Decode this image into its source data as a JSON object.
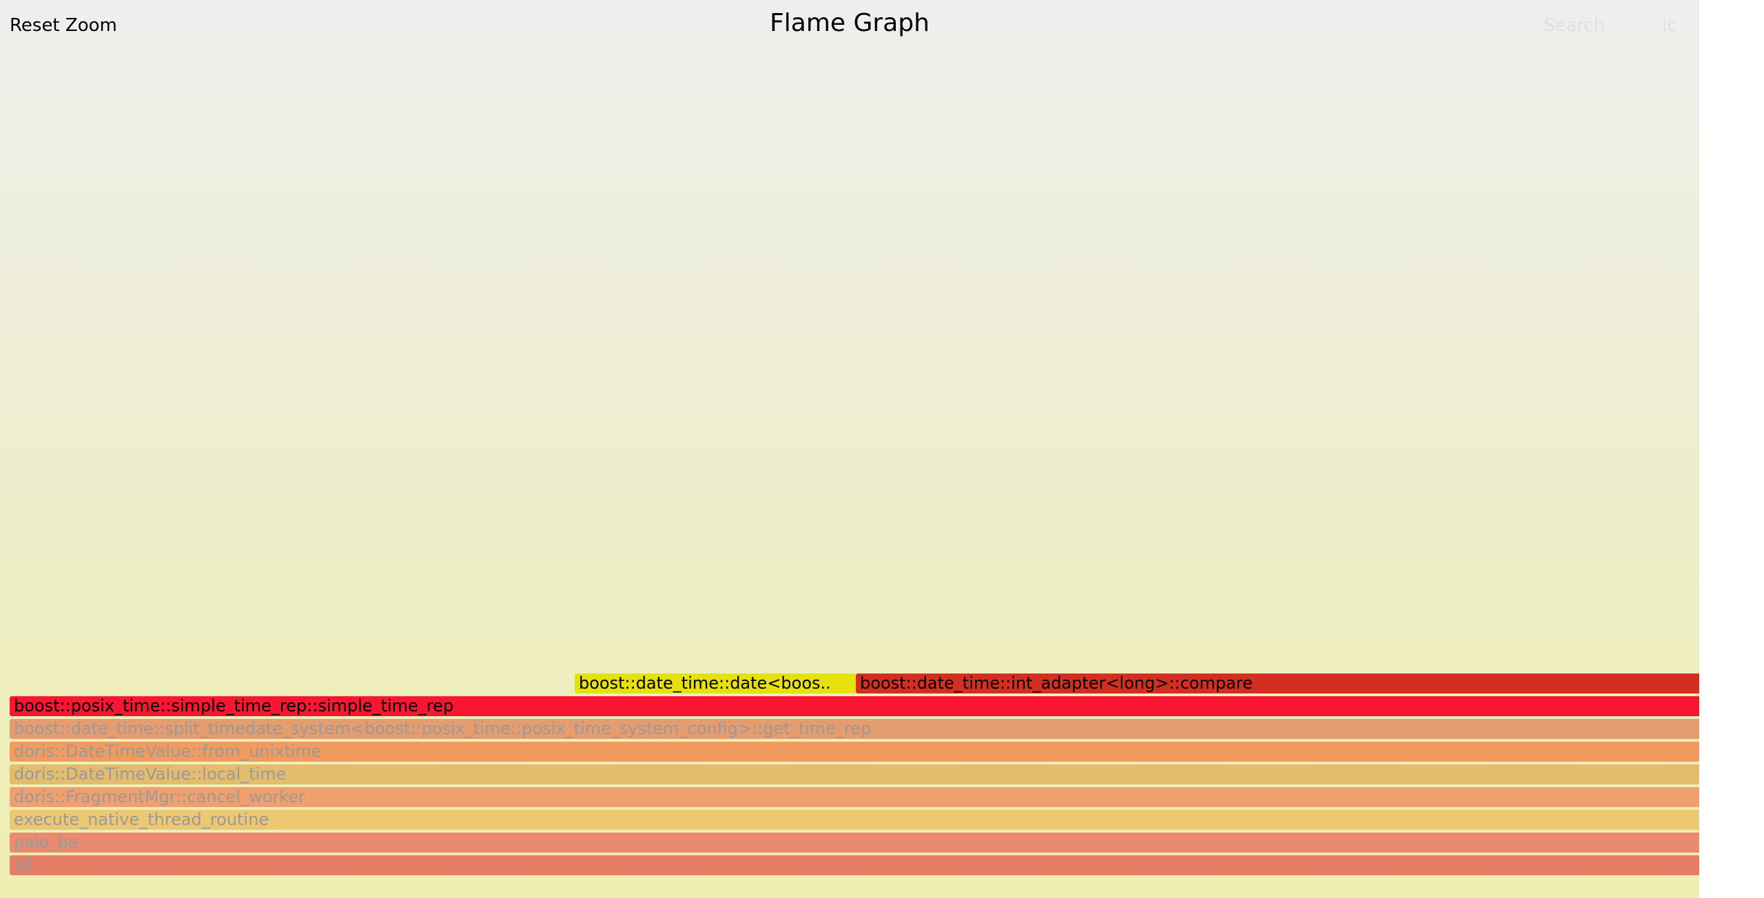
{
  "controls": {
    "reset_zoom_label": "Reset Zoom",
    "title": "Flame Graph",
    "search_label": "Search",
    "ignore_case_label": "ic"
  },
  "frames": [
    {
      "label": "boost::date_time::date<boos..",
      "color": "#e6e00c",
      "text_color": "#000000"
    },
    {
      "label": "boost::date_time::int_adapter<long>::compare",
      "color": "#d22f22",
      "text_color": "#000000"
    },
    {
      "label": "boost::posix_time::simple_time_rep::simple_time_rep",
      "color": "#f81632",
      "text_color": "#000000"
    },
    {
      "label": "boost::date_time::split_timedate_system<boost::posix_time::posix_time_system_config>::get_time_rep",
      "color": "#e59c6e",
      "text_color": "#9a9a9a"
    },
    {
      "label": "doris::DateTimeValue::from_unixtime",
      "color": "#f19b5e",
      "text_color": "#9a9a9a"
    },
    {
      "label": "doris::DateTimeValue::local_time",
      "color": "#e3bc6e",
      "text_color": "#9a9a9a"
    },
    {
      "label": "doris::FragmentMgr::cancel_worker",
      "color": "#f0a06e",
      "text_color": "#9a9a9a"
    },
    {
      "label": "execute_native_thread_routine",
      "color": "#ecc872",
      "text_color": "#9a9a9a"
    },
    {
      "label": "palo_be",
      "color": "#ea8a6e",
      "text_color": "#9a9a9a"
    },
    {
      "label": "all",
      "color": "#e47f66",
      "text_color": "#9a9a9a"
    }
  ]
}
